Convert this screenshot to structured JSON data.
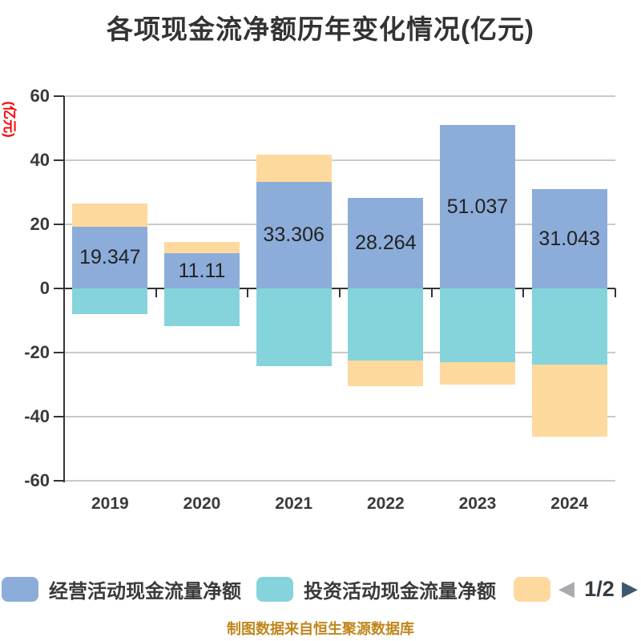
{
  "title": "各项现金流净额历年变化情况(亿元)",
  "y_axis": {
    "unit_label": "(亿元)",
    "unit_label_color": "#ff0000",
    "tick_labels": [
      "60",
      "40",
      "20",
      "0",
      "-20",
      "-40",
      "-60"
    ]
  },
  "x_axis": {
    "categories": [
      "2019",
      "2020",
      "2021",
      "2022",
      "2023",
      "2024"
    ]
  },
  "chart_data": {
    "type": "bar",
    "stacked": true,
    "title": "各项现金流净额历年变化情况(亿元)",
    "categories": [
      "2019",
      "2020",
      "2021",
      "2022",
      "2023",
      "2024"
    ],
    "series": [
      {
        "name": "经营活动现金流量净额",
        "color": "#8cadda",
        "values": [
          19.347,
          11.11,
          33.306,
          28.264,
          51.037,
          31.043
        ]
      },
      {
        "name": "投资活动现金流量净额",
        "color": "#85d4dc",
        "values": [
          -8.0,
          -11.8,
          -24.3,
          -22.5,
          -23.0,
          -23.8
        ]
      },
      {
        "name": "",
        "color": "#fed99e",
        "values": [
          7.1,
          3.4,
          8.4,
          -8.0,
          -7.0,
          -22.5
        ]
      }
    ],
    "bar_labels": {
      "series": 0,
      "values": [
        "19.347",
        "11.11",
        "33.306",
        "28.264",
        "51.037",
        "31.043"
      ]
    },
    "ylim": [
      -60,
      60
    ],
    "y_tick_step": 20,
    "grid": true,
    "legend_position": "bottom"
  },
  "legend": {
    "items": [
      {
        "label": "经营活动现金流量净额",
        "color": "#8cadda"
      },
      {
        "label": "投资活动现金流量净额",
        "color": "#85d4dc"
      },
      {
        "label": "",
        "color": "#fed99e"
      }
    ],
    "pagination": {
      "text": "1/2",
      "prev_arrow": "◀",
      "next_arrow": "▶",
      "prev_arrow_color": "#a8abae",
      "next_arrow_color": "#3e586f"
    }
  },
  "footer": {
    "text": "制图数据来自恒生聚源数据库",
    "color": "#c0861c"
  },
  "colors": {
    "axis": "#333333",
    "grid": "#c9c9c9",
    "tick_text": "#3a3a3a",
    "bar_label_text": "#222222"
  }
}
